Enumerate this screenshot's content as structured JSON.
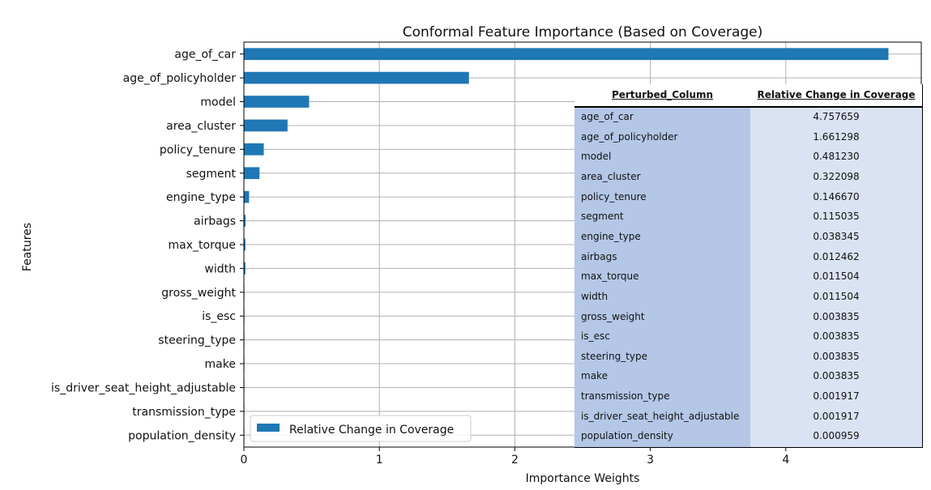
{
  "chart_data": {
    "type": "bar",
    "orientation": "horizontal",
    "title": "Conformal Feature Importance (Based on Coverage)",
    "xlabel": "Importance Weights",
    "ylabel": "Features",
    "xlim": [
      0,
      5.0
    ],
    "xticks": [
      "0",
      "1",
      "2",
      "3",
      "4"
    ],
    "grid": true,
    "legend_position": "lower-left",
    "bar_color": "#1f77b4",
    "series": [
      {
        "name": "Relative Change in Coverage"
      }
    ],
    "categories": [
      "age_of_car",
      "age_of_policyholder",
      "model",
      "area_cluster",
      "policy_tenure",
      "segment",
      "engine_type",
      "airbags",
      "max_torque",
      "width",
      "gross_weight",
      "is_esc",
      "steering_type",
      "make",
      "is_driver_seat_height_adjustable",
      "transmission_type",
      "population_density"
    ],
    "values": [
      4.757659,
      1.661298,
      0.48123,
      0.322098,
      0.14667,
      0.115035,
      0.038345,
      0.012462,
      0.011504,
      0.011504,
      0.003835,
      0.003835,
      0.003835,
      0.003835,
      0.001917,
      0.001917,
      0.000959
    ]
  },
  "table": {
    "header_col1": "Perturbed_Column",
    "header_col2": "Relative Change in Coverage",
    "col1_color": "#b4c7e7",
    "col2_color": "#dae3f3",
    "rows": [
      {
        "column": "age_of_car",
        "value": "4.757659"
      },
      {
        "column": "age_of_policyholder",
        "value": "1.661298"
      },
      {
        "column": "model",
        "value": "0.481230"
      },
      {
        "column": "area_cluster",
        "value": "0.322098"
      },
      {
        "column": "policy_tenure",
        "value": "0.146670"
      },
      {
        "column": "segment",
        "value": "0.115035"
      },
      {
        "column": "engine_type",
        "value": "0.038345"
      },
      {
        "column": "airbags",
        "value": "0.012462"
      },
      {
        "column": "max_torque",
        "value": "0.011504"
      },
      {
        "column": "width",
        "value": "0.011504"
      },
      {
        "column": "gross_weight",
        "value": "0.003835"
      },
      {
        "column": "is_esc",
        "value": "0.003835"
      },
      {
        "column": "steering_type",
        "value": "0.003835"
      },
      {
        "column": "make",
        "value": "0.003835"
      },
      {
        "column": "transmission_type",
        "value": "0.001917"
      },
      {
        "column": "is_driver_seat_height_adjustable",
        "value": "0.001917"
      },
      {
        "column": "population_density",
        "value": "0.000959"
      }
    ]
  }
}
